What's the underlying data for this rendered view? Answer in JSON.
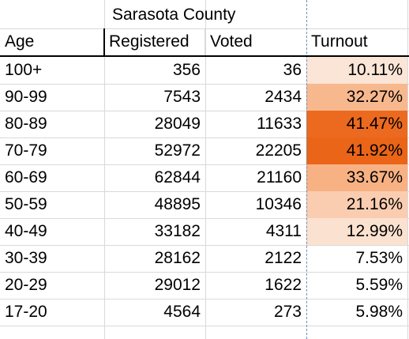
{
  "title": "Sarasota County",
  "headers": {
    "age": "Age",
    "registered": "Registered",
    "voted": "Voted",
    "turnout": "Turnout"
  },
  "rows": [
    {
      "age": "100+",
      "registered": "356",
      "voted": "36",
      "turnout": "10.11%",
      "fill": "#fbe5d6"
    },
    {
      "age": "90-99",
      "registered": "7543",
      "voted": "2434",
      "turnout": "32.27%",
      "fill": "#f8b88e"
    },
    {
      "age": "80-89",
      "registered": "28049",
      "voted": "11633",
      "turnout": "41.47%",
      "fill": "#ec6a1f"
    },
    {
      "age": "70-79",
      "registered": "52972",
      "voted": "22205",
      "turnout": "41.92%",
      "fill": "#ea6517"
    },
    {
      "age": "60-69",
      "registered": "62844",
      "voted": "21160",
      "turnout": "33.67%",
      "fill": "#f7b182"
    },
    {
      "age": "50-59",
      "registered": "48895",
      "voted": "10346",
      "turnout": "21.16%",
      "fill": "#facdb0"
    },
    {
      "age": "40-49",
      "registered": "33182",
      "voted": "4311",
      "turnout": "12.99%",
      "fill": "#fbe1cf"
    },
    {
      "age": "30-39",
      "registered": "28162",
      "voted": "2122",
      "turnout": "7.53%",
      "fill": ""
    },
    {
      "age": "20-29",
      "registered": "29012",
      "voted": "1622",
      "turnout": "5.59%",
      "fill": ""
    },
    {
      "age": "17-20",
      "registered": "4564",
      "voted": "273",
      "turnout": "5.98%",
      "fill": ""
    }
  ]
}
